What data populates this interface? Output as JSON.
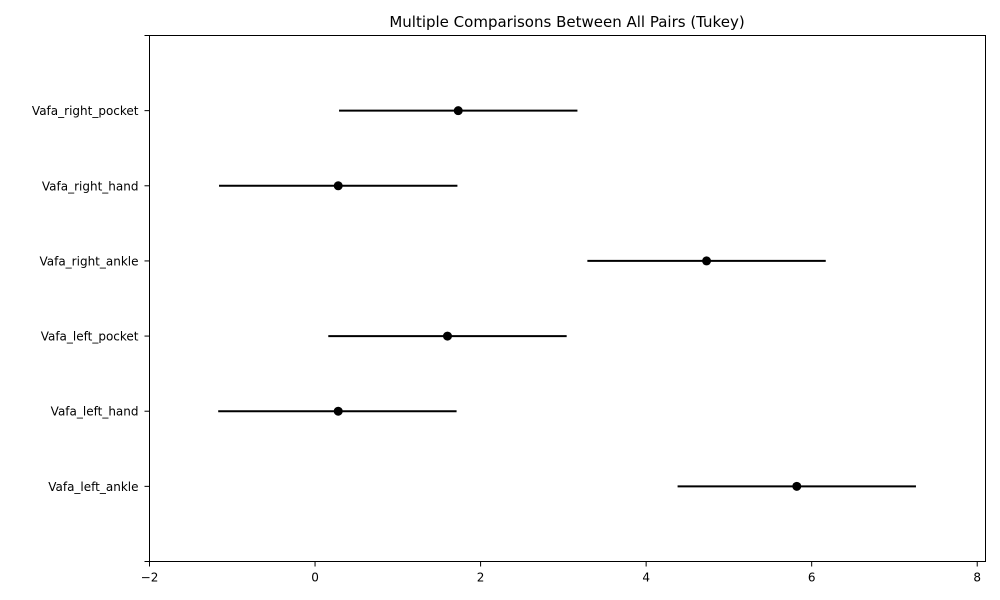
{
  "chart_data": {
    "type": "errorbar",
    "title": "Multiple Comparisons Between All Pairs (Tukey)",
    "xlabel": "",
    "ylabel": "",
    "xlim": [
      -2,
      8.1
    ],
    "xticks": [
      -2,
      0,
      2,
      4,
      6,
      8
    ],
    "grid": false,
    "groups": [
      {
        "label": "Vafa_right_pocket",
        "mean": 1.73,
        "low": 0.29,
        "high": 3.17
      },
      {
        "label": "Vafa_right_hand",
        "mean": 0.28,
        "low": -1.16,
        "high": 1.72
      },
      {
        "label": "Vafa_right_ankle",
        "mean": 4.73,
        "low": 3.29,
        "high": 6.17
      },
      {
        "label": "Vafa_left_pocket",
        "mean": 1.6,
        "low": 0.16,
        "high": 3.04
      },
      {
        "label": "Vafa_left_hand",
        "mean": 0.28,
        "low": -1.17,
        "high": 1.71
      },
      {
        "label": "Vafa_left_ankle",
        "mean": 5.82,
        "low": 4.38,
        "high": 7.26
      }
    ]
  }
}
